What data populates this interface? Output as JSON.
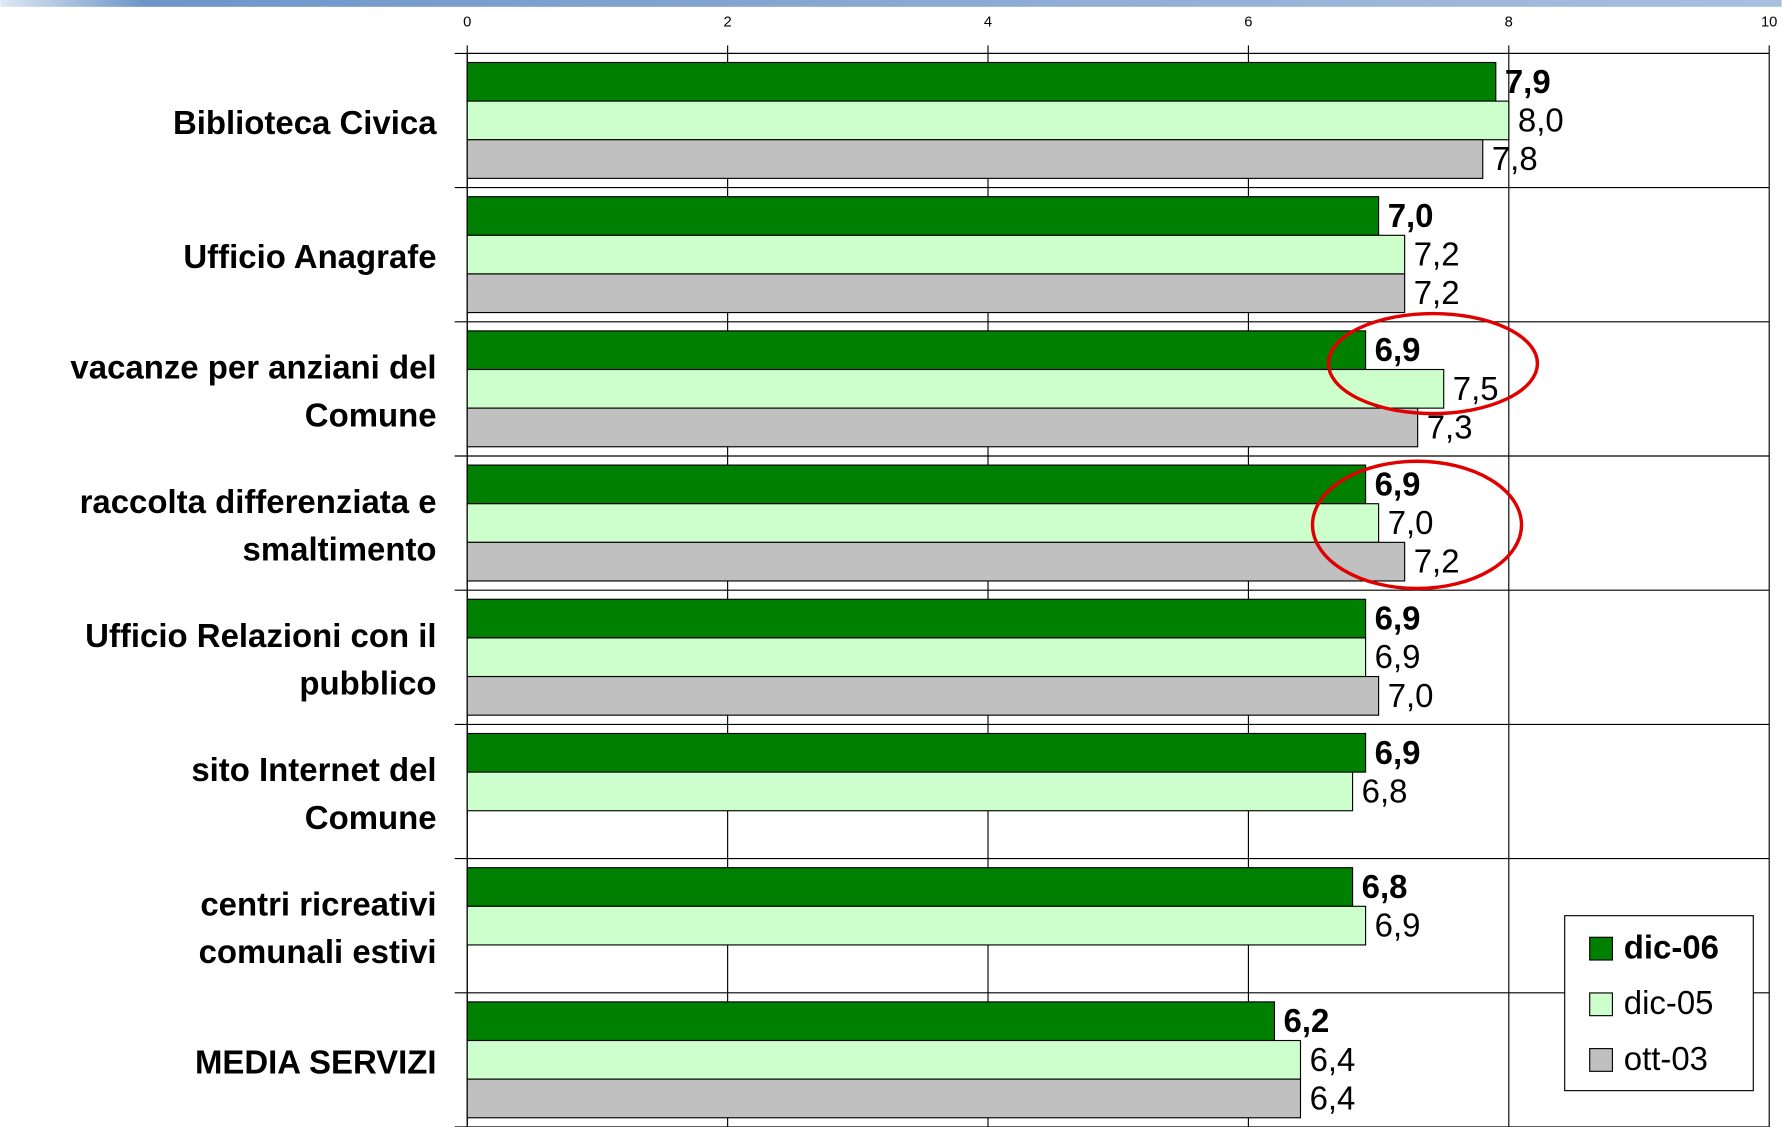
{
  "chart_data": {
    "type": "hbar",
    "categories": [
      "Biblioteca Civica",
      "Ufficio Anagrafe",
      "vacanze per anziani del\nComune",
      "raccolta differenziata e\nsmaltimento",
      "Ufficio Relazioni con il\npubblico",
      "sito Internet del\nComune",
      "centri ricreativi\ncomunali estivi",
      "MEDIA SERVIZI"
    ],
    "series": [
      {
        "name": "dic-06",
        "color": "#008000",
        "values": [
          7.9,
          7.0,
          6.9,
          6.9,
          6.9,
          6.9,
          6.8,
          6.2
        ],
        "value_labels": [
          "7,9",
          "7,0",
          "6,9",
          "6,9",
          "6,9",
          "6,9",
          "6,8",
          "6,2"
        ]
      },
      {
        "name": "dic-05",
        "color": "#ccffcc",
        "values": [
          8.0,
          7.2,
          7.5,
          7.0,
          6.9,
          6.8,
          6.9,
          6.4
        ],
        "value_labels": [
          "8,0",
          "7,2",
          "7,5",
          "7,0",
          "6,9",
          "6,8",
          "6,9",
          "6,4"
        ]
      },
      {
        "name": "ott-03",
        "color": "#c0c0c0",
        "values": [
          7.8,
          7.2,
          7.3,
          7.2,
          7.0,
          null,
          null,
          6.4
        ],
        "value_labels": [
          "7,8",
          "7,2",
          "7,3",
          "7,2",
          "7,0",
          null,
          null,
          "6,4"
        ]
      }
    ],
    "xlim": [
      0,
      10
    ],
    "xticks": [
      0,
      2,
      4,
      6,
      8,
      10
    ],
    "grid": true,
    "legend": "lower right"
  }
}
